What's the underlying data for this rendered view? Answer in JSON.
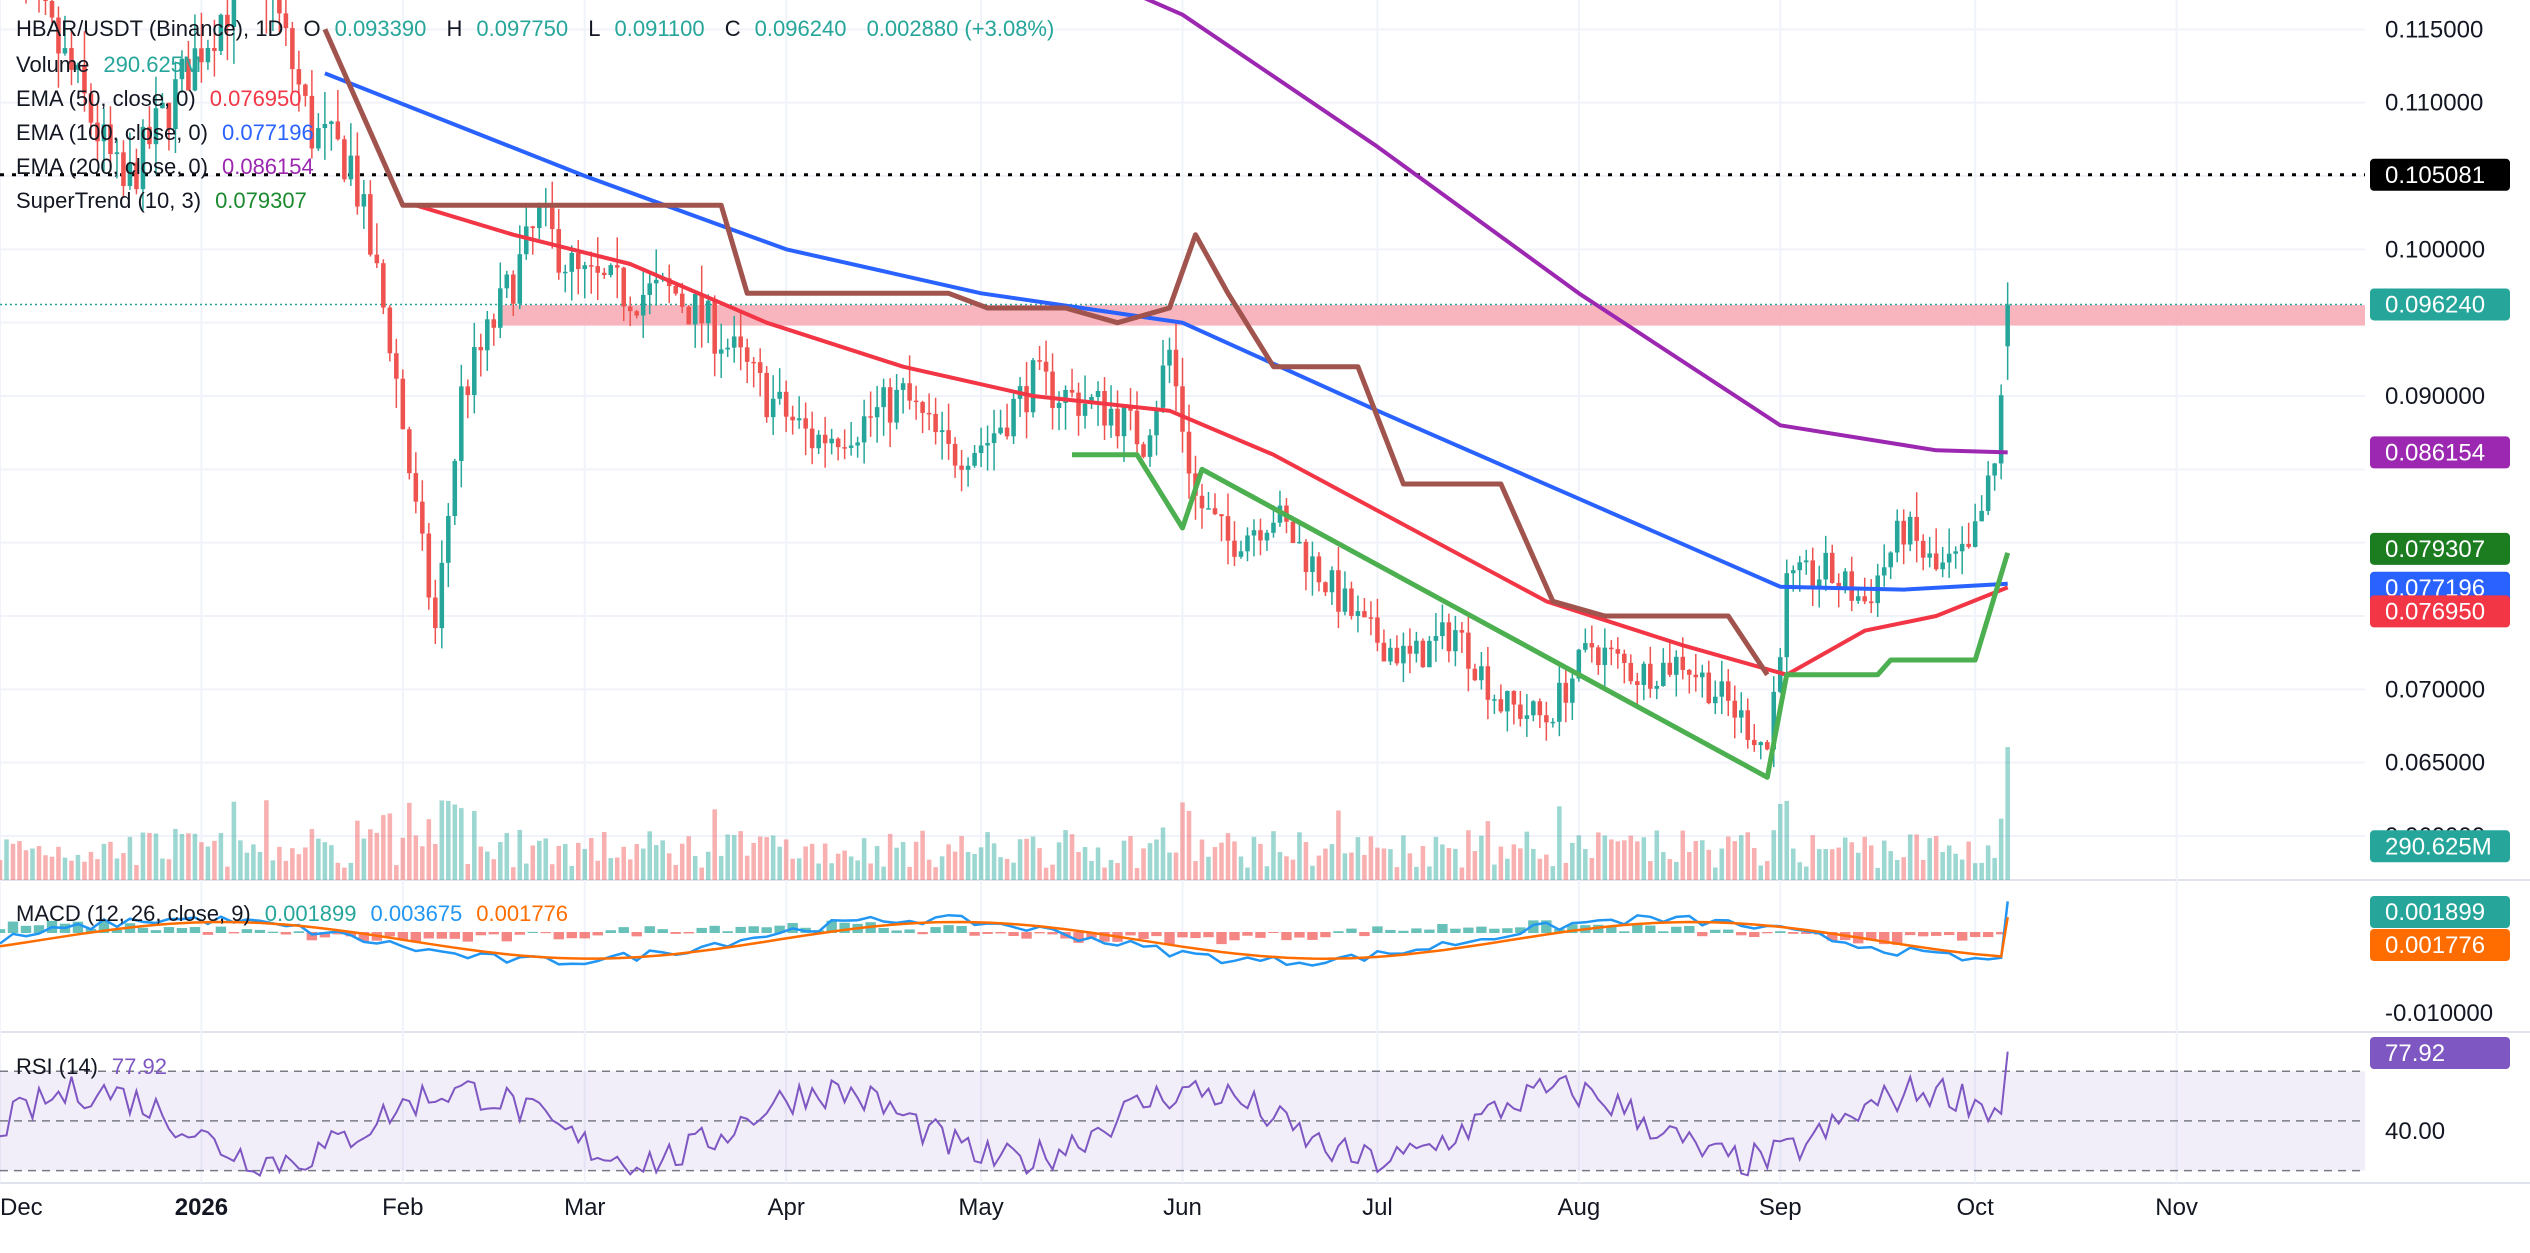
{
  "header": {
    "symbol": "HBAR/USDT (Binance), 1D",
    "open_label": "O",
    "open": "0.093390",
    "high_label": "H",
    "high": "0.097750",
    "low_label": "L",
    "low": "0.091100",
    "close_label": "C",
    "close": "0.096240",
    "change": "0.002880 (+3.08%)"
  },
  "indicators": {
    "volume": {
      "name": "Volume",
      "value": "290.625M"
    },
    "ema50": {
      "name": "EMA (50, close, 0)",
      "value": "0.076950",
      "color": "#f23645"
    },
    "ema100": {
      "name": "EMA (100, close, 0)",
      "value": "0.077196",
      "color": "#2962ff"
    },
    "ema200": {
      "name": "EMA (200, close, 0)",
      "value": "0.086154",
      "color": "#9c27b0"
    },
    "supertrend": {
      "name": "SuperTrend (10, 3)",
      "value": "0.079307",
      "up_color": "#4caf50",
      "down_color": "#a1544d"
    },
    "macd": {
      "name": "MACD (12, 26, close, 9)",
      "hist": "0.001899",
      "macd": "0.003675",
      "signal": "0.001776",
      "macd_color": "#2196f3",
      "signal_color": "#ff6d00",
      "hist_color": "#26a69a"
    },
    "rsi": {
      "name": "RSI (14)",
      "value": "77.92",
      "color": "#7e57c2"
    }
  },
  "price_axis": {
    "ticks": [
      "0.115000",
      "0.110000",
      "0.105081",
      "0.100000",
      "0.096240",
      "0.090000",
      "0.086154",
      "0.079307",
      "0.077196",
      "0.076950",
      "0.070000",
      "0.065000",
      "290.625M",
      "0.060000"
    ],
    "macd_ticks": [
      "0.001899",
      "0.001776",
      "-0.010000"
    ],
    "rsi_ticks": [
      "77.92",
      "40.00"
    ]
  },
  "time_axis": [
    "Dec",
    "2026",
    "Feb",
    "Mar",
    "Apr",
    "May",
    "Jun",
    "Jul",
    "Aug",
    "Sep",
    "Oct",
    "Nov"
  ],
  "colors": {
    "up": "#26a69a",
    "down": "#ef5350",
    "resistance_zone": "#f8a8b3",
    "level_line": "#000000",
    "close_line": "#26a69a"
  },
  "chart_data": {
    "type": "candlestick",
    "title": "HBAR/USDT (Binance), 1D",
    "ylim": [
      0.057,
      0.117
    ],
    "ystep": 0.005,
    "resistance_level": 0.105081,
    "resistance_zone": [
      0.0948,
      0.0962
    ],
    "last_close": 0.09624,
    "x_range": [
      "2025-12-01",
      "2026-11-30"
    ],
    "time_ticks": [
      [
        "2025-12-01",
        "Dec"
      ],
      [
        "2026-01-01",
        "2026"
      ],
      [
        "2026-02-01",
        "Feb"
      ],
      [
        "2026-03-01",
        "Mar"
      ],
      [
        "2026-04-01",
        "Apr"
      ],
      [
        "2026-05-01",
        "May"
      ],
      [
        "2026-06-01",
        "Jun"
      ],
      [
        "2026-07-01",
        "Jul"
      ],
      [
        "2026-08-01",
        "Aug"
      ],
      [
        "2026-09-01",
        "Sep"
      ],
      [
        "2026-10-01",
        "Oct"
      ],
      [
        "2026-11-01",
        "Nov"
      ]
    ],
    "close_path": [
      [
        "2025-12-01",
        0.121
      ],
      [
        "2025-12-12",
        0.112
      ],
      [
        "2025-12-20",
        0.104
      ],
      [
        "2026-01-01",
        0.114
      ],
      [
        "2026-01-10",
        0.12
      ],
      [
        "2026-01-18",
        0.108
      ],
      [
        "2026-01-24",
        0.106
      ],
      [
        "2026-01-30",
        0.094
      ],
      [
        "2026-02-03",
        0.082
      ],
      [
        "2026-02-06",
        0.074
      ],
      [
        "2026-02-10",
        0.09
      ],
      [
        "2026-02-16",
        0.096
      ],
      [
        "2026-02-22",
        0.102
      ],
      [
        "2026-02-28",
        0.098
      ],
      [
        "2026-03-08",
        0.097
      ],
      [
        "2026-03-15",
        0.097
      ],
      [
        "2026-03-22",
        0.094
      ],
      [
        "2026-03-29",
        0.09
      ],
      [
        "2026-04-05",
        0.087
      ],
      [
        "2026-04-12",
        0.088
      ],
      [
        "2026-04-19",
        0.09
      ],
      [
        "2026-04-26",
        0.086
      ],
      [
        "2026-05-02",
        0.087
      ],
      [
        "2026-05-09",
        0.091
      ],
      [
        "2026-05-14",
        0.09
      ],
      [
        "2026-05-21",
        0.089
      ],
      [
        "2026-05-26",
        0.087
      ],
      [
        "2026-05-30",
        0.093
      ],
      [
        "2026-06-03",
        0.083
      ],
      [
        "2026-06-08",
        0.08
      ],
      [
        "2026-06-15",
        0.082
      ],
      [
        "2026-06-22",
        0.078
      ],
      [
        "2026-06-29",
        0.074
      ],
      [
        "2026-07-06",
        0.072
      ],
      [
        "2026-07-13",
        0.074
      ],
      [
        "2026-07-20",
        0.069
      ],
      [
        "2026-07-27",
        0.068
      ],
      [
        "2026-08-03",
        0.073
      ],
      [
        "2026-08-10",
        0.071
      ],
      [
        "2026-08-17",
        0.072
      ],
      [
        "2026-08-24",
        0.069
      ],
      [
        "2026-08-30",
        0.066
      ],
      [
        "2026-09-02",
        0.077
      ],
      [
        "2026-09-08",
        0.078
      ],
      [
        "2026-09-14",
        0.076
      ],
      [
        "2026-09-20",
        0.081
      ],
      [
        "2026-09-25",
        0.078
      ],
      [
        "2026-09-30",
        0.079
      ],
      [
        "2026-10-04",
        0.085
      ],
      [
        "2026-10-06",
        0.09624
      ]
    ],
    "ema50": [
      [
        "2026-02-03",
        0.103
      ],
      [
        "2026-02-18",
        0.101
      ],
      [
        "2026-03-08",
        0.099
      ],
      [
        "2026-03-29",
        0.095
      ],
      [
        "2026-04-19",
        0.092
      ],
      [
        "2026-05-09",
        0.09
      ],
      [
        "2026-05-30",
        0.089
      ],
      [
        "2026-06-15",
        0.086
      ],
      [
        "2026-07-06",
        0.081
      ],
      [
        "2026-07-27",
        0.076
      ],
      [
        "2026-08-17",
        0.073
      ],
      [
        "2026-09-02",
        0.071
      ],
      [
        "2026-09-14",
        0.074
      ],
      [
        "2026-09-25",
        0.075
      ],
      [
        "2026-10-06",
        0.07695
      ]
    ],
    "ema100": [
      [
        "2026-01-20",
        0.112
      ],
      [
        "2026-03-01",
        0.105
      ],
      [
        "2026-04-01",
        0.1
      ],
      [
        "2026-05-01",
        0.097
      ],
      [
        "2026-06-01",
        0.095
      ],
      [
        "2026-07-01",
        0.089
      ],
      [
        "2026-08-01",
        0.083
      ],
      [
        "2026-09-01",
        0.077
      ],
      [
        "2026-09-20",
        0.0768
      ],
      [
        "2026-10-06",
        0.077196
      ]
    ],
    "ema200": [
      [
        "2026-05-01",
        0.122
      ],
      [
        "2026-06-01",
        0.116
      ],
      [
        "2026-07-01",
        0.107
      ],
      [
        "2026-08-01",
        0.097
      ],
      [
        "2026-09-01",
        0.088
      ],
      [
        "2026-09-25",
        0.0863
      ],
      [
        "2026-10-06",
        0.086154
      ]
    ],
    "supertrend_down": [
      [
        "2026-01-20",
        0.115
      ],
      [
        "2026-02-01",
        0.103
      ],
      [
        "2026-02-18",
        0.103
      ],
      [
        "2026-03-22",
        0.103
      ],
      [
        "2026-03-26",
        0.097
      ],
      [
        "2026-04-26",
        0.097
      ],
      [
        "2026-05-02",
        0.096
      ],
      [
        "2026-05-14",
        0.096
      ],
      [
        "2026-05-22",
        0.095
      ],
      [
        "2026-05-30",
        0.096
      ],
      [
        "2026-06-03",
        0.101
      ],
      [
        "2026-06-08",
        0.097
      ],
      [
        "2026-06-15",
        0.092
      ],
      [
        "2026-06-28",
        0.092
      ],
      [
        "2026-07-05",
        0.084
      ],
      [
        "2026-07-10",
        0.084
      ],
      [
        "2026-07-20",
        0.084
      ],
      [
        "2026-07-28",
        0.076
      ],
      [
        "2026-08-05",
        0.075
      ],
      [
        "2026-08-24",
        0.075
      ],
      [
        "2026-08-30",
        0.071
      ]
    ],
    "supertrend_up": [
      [
        "2026-05-15",
        0.086
      ],
      [
        "2026-05-25",
        0.086
      ],
      [
        "2026-06-01",
        0.081
      ],
      [
        "2026-06-04",
        0.085
      ],
      [
        "2026-08-30",
        0.064
      ],
      [
        "2026-09-02",
        0.071
      ],
      [
        "2026-09-05",
        0.071
      ],
      [
        "2026-09-16",
        0.071
      ],
      [
        "2026-09-18",
        0.072
      ],
      [
        "2026-10-01",
        0.072
      ],
      [
        "2026-10-06",
        0.079307
      ]
    ],
    "volume_last": 290.625,
    "macd": {
      "hist": 0.001899,
      "macd": 0.003675,
      "signal": 0.001776,
      "ylim": [
        -0.012,
        0.006
      ]
    },
    "rsi": {
      "value": 77.92,
      "levels": [
        70,
        50,
        30
      ],
      "ylim": [
        25,
        85
      ]
    }
  }
}
